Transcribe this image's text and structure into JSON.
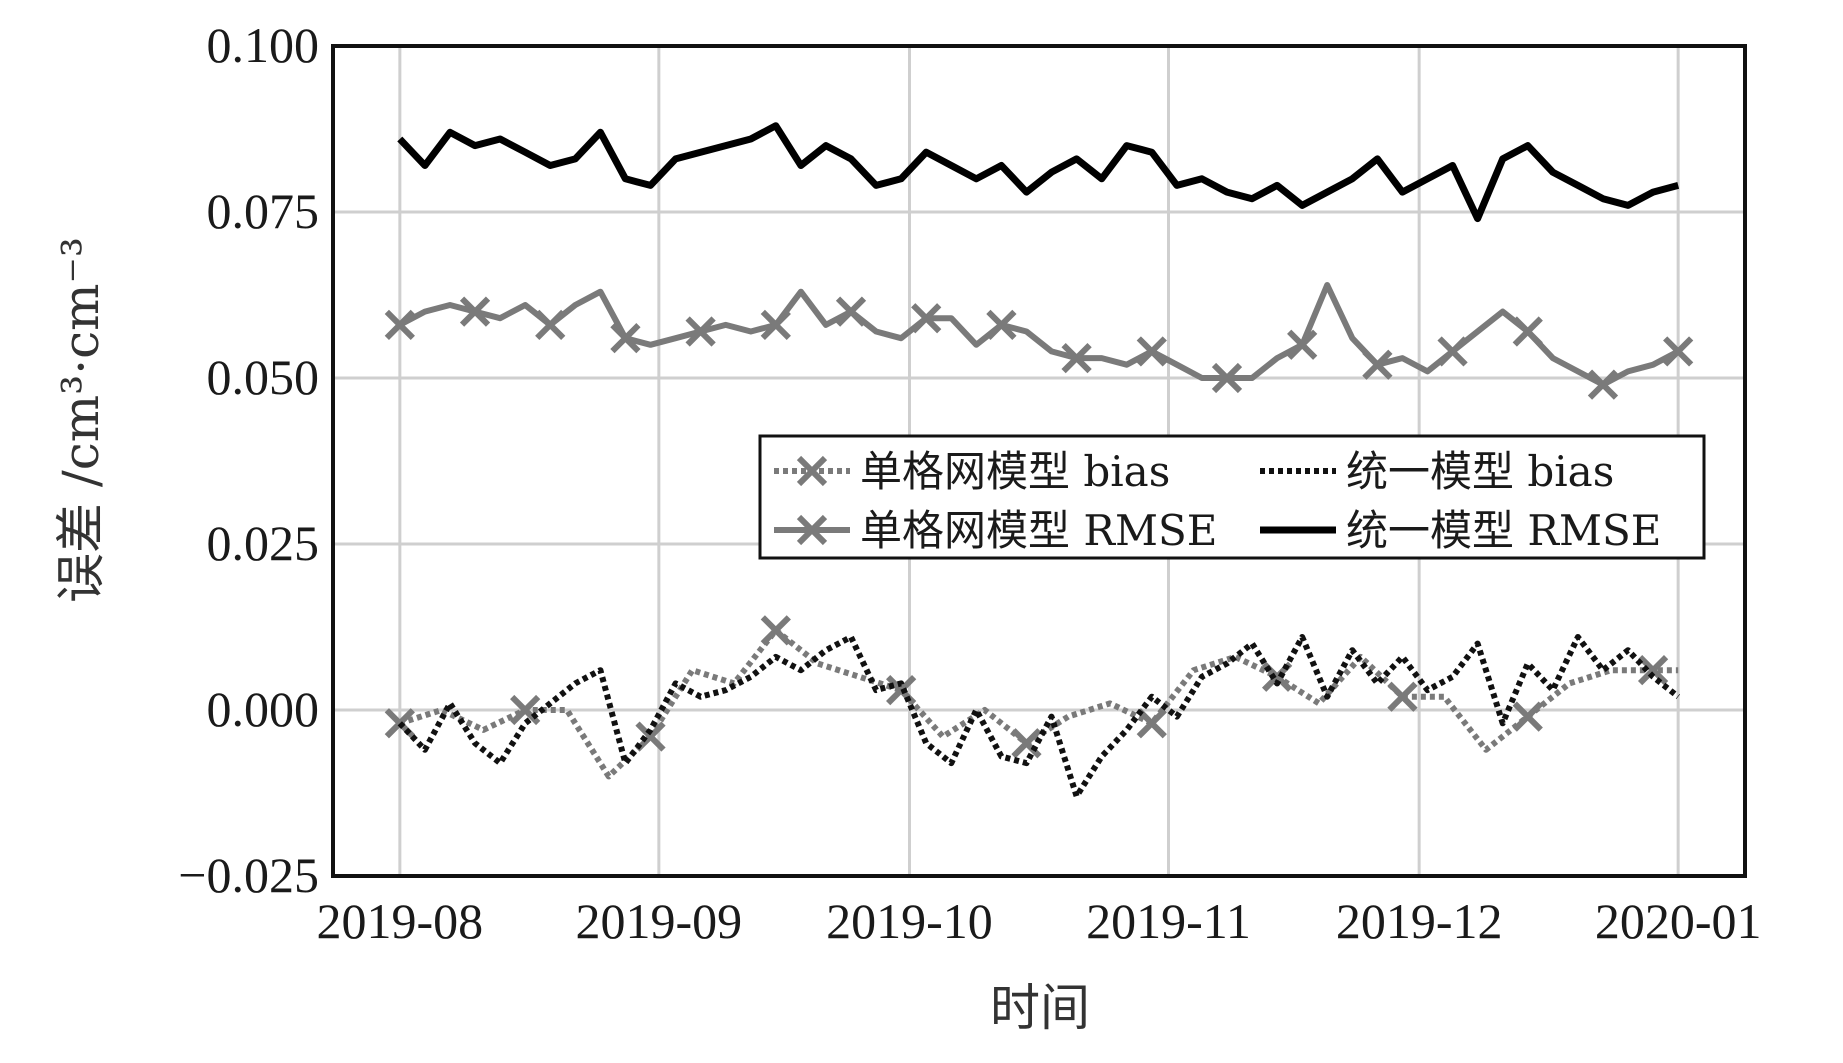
{
  "chart_data": {
    "type": "line",
    "xlabel": "时间",
    "ylabel": "误差 /cm³·cm⁻³",
    "ylim": [
      -0.025,
      0.1
    ],
    "yticks": [
      -0.025,
      0.0,
      0.025,
      0.05,
      0.075,
      0.1
    ],
    "ytick_labels": [
      "−0.025",
      "0.000",
      "0.025",
      "0.050",
      "0.075",
      "0.100"
    ],
    "xlim": [
      "2019-07-24",
      "2020-01-09"
    ],
    "xticks": [
      "2019-08-01",
      "2019-09-01",
      "2019-10-01",
      "2019-11-01",
      "2019-12-01",
      "2020-01-01"
    ],
    "xtick_labels": [
      "2019-08",
      "2019-09",
      "2019-10",
      "2019-11",
      "2019-12",
      "2020-01"
    ],
    "grid": true,
    "legend_position": "right",
    "series": [
      {
        "name": "单格网模型 bias",
        "color": "#7a7a7a",
        "style": "dotted-x",
        "x": [
          "2019-08-01",
          "2019-08-06",
          "2019-08-11",
          "2019-08-16",
          "2019-08-21",
          "2019-08-26",
          "2019-08-31",
          "2019-09-05",
          "2019-09-10",
          "2019-09-15",
          "2019-09-20",
          "2019-09-25",
          "2019-09-30",
          "2019-10-05",
          "2019-10-10",
          "2019-10-15",
          "2019-10-20",
          "2019-10-25",
          "2019-10-30",
          "2019-11-04",
          "2019-11-09",
          "2019-11-14",
          "2019-11-19",
          "2019-11-24",
          "2019-11-29",
          "2019-12-04",
          "2019-12-09",
          "2019-12-14",
          "2019-12-19",
          "2019-12-24",
          "2019-12-29",
          "2020-01-01"
        ],
        "values": [
          -0.002,
          0.0,
          -0.003,
          0.0,
          0.0,
          -0.01,
          -0.004,
          0.006,
          0.004,
          0.012,
          0.007,
          0.005,
          0.003,
          -0.004,
          0.0,
          -0.005,
          -0.001,
          0.001,
          -0.002,
          0.006,
          0.008,
          0.005,
          0.001,
          0.008,
          0.002,
          0.002,
          -0.006,
          -0.001,
          0.004,
          0.006,
          0.006,
          0.006
        ]
      },
      {
        "name": "统一模型 bias",
        "color": "#111111",
        "style": "dotted",
        "x": [
          "2019-08-01",
          "2019-08-04",
          "2019-08-07",
          "2019-08-10",
          "2019-08-13",
          "2019-08-16",
          "2019-08-19",
          "2019-08-22",
          "2019-08-25",
          "2019-08-28",
          "2019-08-31",
          "2019-09-03",
          "2019-09-06",
          "2019-09-09",
          "2019-09-12",
          "2019-09-15",
          "2019-09-18",
          "2019-09-21",
          "2019-09-24",
          "2019-09-27",
          "2019-09-30",
          "2019-10-03",
          "2019-10-06",
          "2019-10-09",
          "2019-10-12",
          "2019-10-15",
          "2019-10-18",
          "2019-10-21",
          "2019-10-24",
          "2019-10-27",
          "2019-10-30",
          "2019-11-02",
          "2019-11-05",
          "2019-11-08",
          "2019-11-11",
          "2019-11-14",
          "2019-11-17",
          "2019-11-20",
          "2019-11-23",
          "2019-11-26",
          "2019-11-29",
          "2019-12-02",
          "2019-12-05",
          "2019-12-08",
          "2019-12-11",
          "2019-12-14",
          "2019-12-17",
          "2019-12-20",
          "2019-12-23",
          "2019-12-26",
          "2019-12-29",
          "2020-01-01"
        ],
        "values": [
          -0.002,
          -0.006,
          0.001,
          -0.005,
          -0.008,
          -0.002,
          0.001,
          0.004,
          0.006,
          -0.008,
          -0.003,
          0.004,
          0.002,
          0.003,
          0.005,
          0.008,
          0.006,
          0.009,
          0.011,
          0.003,
          0.004,
          -0.005,
          -0.008,
          0.0,
          -0.007,
          -0.008,
          -0.001,
          -0.013,
          -0.007,
          -0.003,
          0.002,
          -0.001,
          0.005,
          0.007,
          0.01,
          0.004,
          0.011,
          0.002,
          0.009,
          0.004,
          0.008,
          0.003,
          0.005,
          0.01,
          -0.002,
          0.007,
          0.003,
          0.011,
          0.006,
          0.009,
          0.005,
          0.002
        ]
      },
      {
        "name": "单格网模型 RMSE",
        "color": "#7a7a7a",
        "style": "solid-x",
        "x": [
          "2019-08-01",
          "2019-08-04",
          "2019-08-07",
          "2019-08-10",
          "2019-08-13",
          "2019-08-16",
          "2019-08-19",
          "2019-08-22",
          "2019-08-25",
          "2019-08-28",
          "2019-08-31",
          "2019-09-03",
          "2019-09-06",
          "2019-09-09",
          "2019-09-12",
          "2019-09-15",
          "2019-09-18",
          "2019-09-21",
          "2019-09-24",
          "2019-09-27",
          "2019-09-30",
          "2019-10-03",
          "2019-10-06",
          "2019-10-09",
          "2019-10-12",
          "2019-10-15",
          "2019-10-18",
          "2019-10-21",
          "2019-10-24",
          "2019-10-27",
          "2019-10-30",
          "2019-11-02",
          "2019-11-05",
          "2019-11-08",
          "2019-11-11",
          "2019-11-14",
          "2019-11-17",
          "2019-11-20",
          "2019-11-23",
          "2019-11-26",
          "2019-11-29",
          "2019-12-02",
          "2019-12-05",
          "2019-12-08",
          "2019-12-11",
          "2019-12-14",
          "2019-12-17",
          "2019-12-20",
          "2019-12-23",
          "2019-12-26",
          "2019-12-29",
          "2020-01-01"
        ],
        "values": [
          0.058,
          0.06,
          0.061,
          0.06,
          0.059,
          0.061,
          0.058,
          0.061,
          0.063,
          0.056,
          0.055,
          0.056,
          0.057,
          0.058,
          0.057,
          0.058,
          0.063,
          0.058,
          0.06,
          0.057,
          0.056,
          0.059,
          0.059,
          0.055,
          0.058,
          0.057,
          0.054,
          0.053,
          0.053,
          0.052,
          0.054,
          0.052,
          0.05,
          0.05,
          0.05,
          0.053,
          0.055,
          0.064,
          0.056,
          0.052,
          0.053,
          0.051,
          0.054,
          0.057,
          0.06,
          0.057,
          0.053,
          0.051,
          0.049,
          0.051,
          0.052,
          0.054
        ]
      },
      {
        "name": "统一模型 RMSE",
        "color": "#000000",
        "style": "solid",
        "x": [
          "2019-08-01",
          "2019-08-04",
          "2019-08-07",
          "2019-08-10",
          "2019-08-13",
          "2019-08-16",
          "2019-08-19",
          "2019-08-22",
          "2019-08-25",
          "2019-08-28",
          "2019-08-31",
          "2019-09-03",
          "2019-09-06",
          "2019-09-09",
          "2019-09-12",
          "2019-09-15",
          "2019-09-18",
          "2019-09-21",
          "2019-09-24",
          "2019-09-27",
          "2019-09-30",
          "2019-10-03",
          "2019-10-06",
          "2019-10-09",
          "2019-10-12",
          "2019-10-15",
          "2019-10-18",
          "2019-10-21",
          "2019-10-24",
          "2019-10-27",
          "2019-10-30",
          "2019-11-02",
          "2019-11-05",
          "2019-11-08",
          "2019-11-11",
          "2019-11-14",
          "2019-11-17",
          "2019-11-20",
          "2019-11-23",
          "2019-11-26",
          "2019-11-29",
          "2019-12-02",
          "2019-12-05",
          "2019-12-08",
          "2019-12-11",
          "2019-12-14",
          "2019-12-17",
          "2019-12-20",
          "2019-12-23",
          "2019-12-26",
          "2019-12-29",
          "2020-01-01"
        ],
        "values": [
          0.086,
          0.082,
          0.087,
          0.085,
          0.086,
          0.084,
          0.082,
          0.083,
          0.087,
          0.08,
          0.079,
          0.083,
          0.084,
          0.085,
          0.086,
          0.088,
          0.082,
          0.085,
          0.083,
          0.079,
          0.08,
          0.084,
          0.082,
          0.08,
          0.082,
          0.078,
          0.081,
          0.083,
          0.08,
          0.085,
          0.084,
          0.079,
          0.08,
          0.078,
          0.077,
          0.079,
          0.076,
          0.078,
          0.08,
          0.083,
          0.078,
          0.08,
          0.082,
          0.074,
          0.083,
          0.085,
          0.081,
          0.079,
          0.077,
          0.076,
          0.078,
          0.079
        ]
      }
    ]
  }
}
